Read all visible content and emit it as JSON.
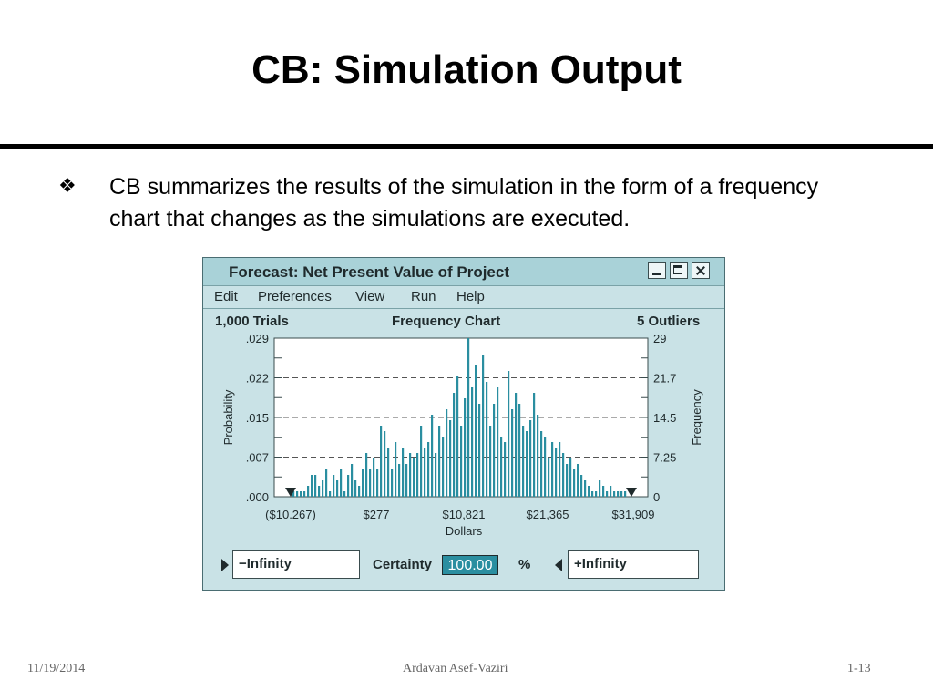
{
  "slide": {
    "title": "CB: Simulation Output",
    "bullet": "CB summarizes the results of the simulation in the form of a frequency chart that changes as the simulations are executed.",
    "bullet_icon": "diamond-bullet-icon"
  },
  "window": {
    "title": "Forecast: Net Present Value of Project",
    "menu": [
      "Edit",
      "Preferences",
      "View",
      "Run",
      "Help"
    ],
    "trials": "1,000 Trials",
    "chart_name": "Frequency Chart",
    "outliers": "5 Outliers",
    "lower_field": "−Infinity",
    "certainty_label": "Certainty",
    "certainty_value": "100.00",
    "percent": "%",
    "upper_field": "+Infinity"
  },
  "chart_data": {
    "type": "bar",
    "title": "Frequency Chart",
    "xlabel": "Dollars",
    "ylabel": "Probability",
    "ylabel_right": "Frequency",
    "x_ticks": [
      "($10.267)",
      "$277",
      "$10,821",
      "$21,365",
      "$31,909"
    ],
    "y_ticks_left": [
      ".000",
      ".007",
      ".015",
      ".022",
      ".029"
    ],
    "y_ticks_right": [
      "0",
      "7.25",
      "14.5",
      "21.7",
      "29"
    ],
    "ylim": [
      0,
      29
    ],
    "xlim": [
      -10267,
      31909
    ],
    "grid": true,
    "bar_color": "#2a8ea0",
    "frequencies": [
      1,
      1,
      1,
      1,
      2,
      4,
      4,
      2,
      3,
      5,
      1,
      4,
      3,
      5,
      1,
      4,
      6,
      3,
      2,
      5,
      8,
      5,
      7,
      5,
      13,
      12,
      9,
      5,
      10,
      6,
      9,
      6,
      8,
      7,
      8,
      13,
      9,
      10,
      15,
      8,
      13,
      11,
      16,
      14,
      19,
      22,
      13,
      18,
      29,
      20,
      24,
      17,
      26,
      21,
      13,
      17,
      20,
      11,
      10,
      23,
      16,
      19,
      17,
      13,
      12,
      14,
      19,
      15,
      12,
      11,
      7,
      10,
      9,
      10,
      8,
      6,
      7,
      5,
      6,
      4,
      3,
      2,
      1,
      1,
      3,
      2,
      1,
      2,
      1,
      1,
      1,
      1
    ]
  },
  "footer": {
    "date": "11/19/2014",
    "author": "Ardavan Asef-Vaziri",
    "page": "1-13"
  }
}
